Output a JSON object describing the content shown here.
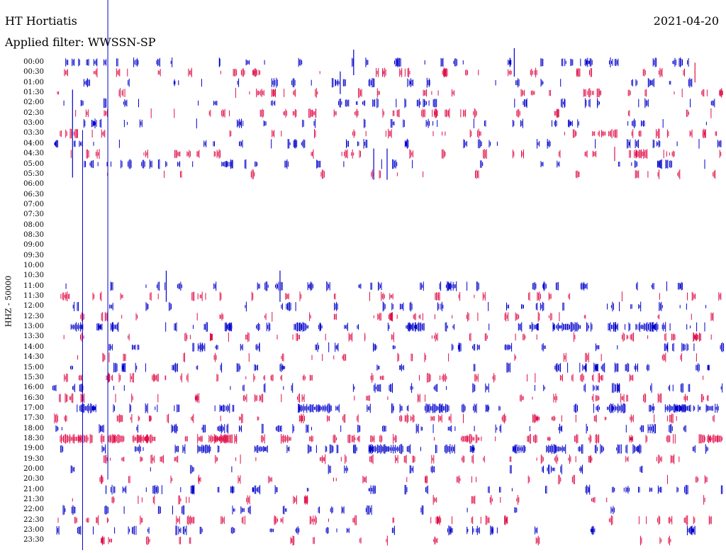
{
  "header": {
    "station": "HT Hortiatis",
    "date": "2021-04-20",
    "filter": "Applied filter: WWSSN-SP"
  },
  "chart_data": {
    "type": "line",
    "title": "HT Hortiatis",
    "subtitle": "Applied filter: WWSSN-SP",
    "date": "2021-04-20",
    "channel_label": "HHZ - 50000",
    "rows": [
      "00:00",
      "00:30",
      "01:00",
      "01:30",
      "02:00",
      "02:30",
      "03:00",
      "03:30",
      "04:00",
      "04:30",
      "05:00",
      "05:30",
      "06:00",
      "06:30",
      "07:00",
      "07:30",
      "08:00",
      "08:30",
      "09:00",
      "09:30",
      "10:00",
      "10:30",
      "11:00",
      "11:30",
      "12:00",
      "12:30",
      "13:00",
      "13:30",
      "14:00",
      "14:30",
      "15:00",
      "15:30",
      "16:00",
      "16:30",
      "17:00",
      "17:30",
      "18:00",
      "18:30",
      "19:00",
      "19:30",
      "20:00",
      "20:30",
      "21:00",
      "21:30",
      "22:00",
      "22:30",
      "23:00",
      "23:30"
    ],
    "row_activity": [
      2,
      2,
      2,
      2,
      2,
      2,
      2,
      2,
      2,
      2,
      2,
      1,
      0,
      0,
      0,
      0,
      0,
      0,
      0,
      0,
      0,
      0,
      2,
      2,
      2,
      2,
      3,
      2,
      2,
      1,
      2,
      2,
      2,
      2,
      3,
      2,
      2,
      3,
      3,
      2,
      1,
      1,
      2,
      1,
      1,
      2,
      2,
      1
    ],
    "series": [
      {
        "name": "even rows",
        "color": "#0000cc"
      },
      {
        "name": "odd rows",
        "color": "#e0104a"
      }
    ],
    "events": [
      {
        "row": 0,
        "x": 0.45,
        "amp": 18,
        "color": "blue"
      },
      {
        "row": 0,
        "x": 0.69,
        "amp": 20,
        "color": "blue"
      },
      {
        "row": 1,
        "x": 0.96,
        "amp": 14,
        "color": "red"
      },
      {
        "row": 2,
        "x": 0.43,
        "amp": 16,
        "color": "blue"
      },
      {
        "row": 7,
        "x": 0.03,
        "amp": 62,
        "color": "blue"
      },
      {
        "row": 9,
        "x": 0.84,
        "amp": 10,
        "color": "red"
      },
      {
        "row": 10,
        "x": 0.48,
        "amp": 22,
        "color": "blue"
      },
      {
        "row": 10,
        "x": 0.5,
        "amp": 22,
        "color": "blue"
      },
      {
        "row": 22,
        "x": 0.17,
        "amp": 22,
        "color": "blue"
      },
      {
        "row": 22,
        "x": 0.34,
        "amp": 22,
        "color": "blue"
      },
      {
        "row": 26,
        "x": 0.4,
        "amp": 6,
        "color": "blue"
      },
      {
        "row": 38,
        "x": 0.45,
        "amp": 6,
        "color": "blue"
      },
      {
        "row": 42,
        "x": 0.08,
        "amp": 6,
        "color": "blue"
      }
    ],
    "long_vertical_traces": [
      {
        "start_row": 7,
        "end_row": 47,
        "x": 0.045,
        "color": "blue"
      },
      {
        "start_row": 0,
        "end_row": 41,
        "x": 0.0827,
        "color": "blue"
      }
    ]
  }
}
